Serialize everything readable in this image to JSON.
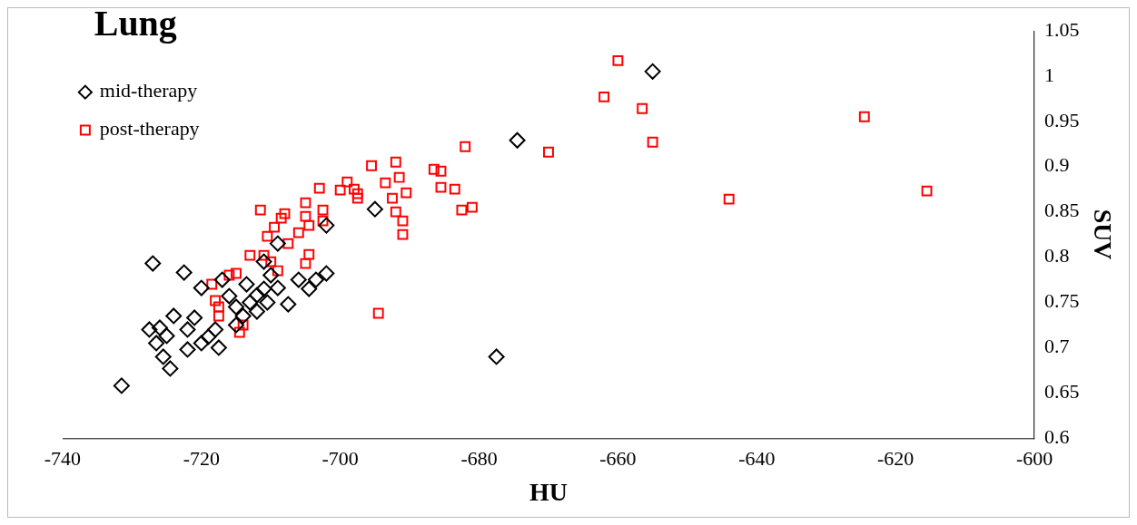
{
  "chart_data": {
    "type": "scatter",
    "title": "Lung",
    "xlabel": "HU",
    "ylabel": "SUV",
    "xlim": [
      -740,
      -600
    ],
    "xticks": [
      -740,
      -720,
      -700,
      -680,
      -660,
      -640,
      -620,
      -600
    ],
    "ylim": [
      0.6,
      1.05
    ],
    "yticks": [
      0.6,
      0.65,
      0.7,
      0.75,
      0.8,
      0.85,
      0.9,
      0.95,
      1,
      1.05
    ],
    "grid": false,
    "legend": "top left",
    "series": [
      {
        "name": "mid-therapy",
        "color": "#000000",
        "marker": "diamond",
        "x": [
          -731.5,
          -727,
          -727.5,
          -726.5,
          -726,
          -725.5,
          -725,
          -724.5,
          -724,
          -722.5,
          -722,
          -722,
          -721,
          -720,
          -720,
          -719,
          -718,
          -717.5,
          -717,
          -716,
          -715,
          -714,
          -713.5,
          -713,
          -712,
          -711,
          -711,
          -710.5,
          -710,
          -709,
          -709,
          -707.5,
          -706,
          -704.5,
          -703.5,
          -702,
          -702,
          -695,
          -677.5,
          -674.5,
          -655,
          -712,
          -715
        ],
        "values": [
          0.658,
          0.793,
          0.72,
          0.705,
          0.722,
          0.69,
          0.713,
          0.677,
          0.735,
          0.783,
          0.698,
          0.72,
          0.733,
          0.766,
          0.705,
          0.712,
          0.72,
          0.7,
          0.775,
          0.757,
          0.745,
          0.735,
          0.77,
          0.75,
          0.74,
          0.795,
          0.765,
          0.75,
          0.78,
          0.815,
          0.766,
          0.748,
          0.775,
          0.765,
          0.775,
          0.782,
          0.835,
          0.853,
          0.69,
          0.929,
          1.005,
          0.758,
          0.725
        ]
      },
      {
        "name": "post-therapy",
        "color": "#ff0000",
        "marker": "square",
        "x": [
          -718.5,
          -718,
          -717.5,
          -717.5,
          -716,
          -715,
          -714.5,
          -714,
          -713,
          -711.5,
          -711,
          -710.5,
          -710,
          -709.5,
          -709,
          -708.5,
          -708,
          -707.5,
          -706,
          -705,
          -705,
          -705,
          -704.5,
          -704.5,
          -703,
          -702.5,
          -702.5,
          -700,
          -699,
          -698,
          -697.5,
          -697.5,
          -695.5,
          -694.5,
          -693.5,
          -692.5,
          -692,
          -692,
          -691.5,
          -691,
          -691,
          -690.5,
          -686.5,
          -685.5,
          -685.5,
          -683.5,
          -682.5,
          -682,
          -681,
          -670,
          -662,
          -660,
          -656.5,
          -655,
          -644,
          -624.5,
          -615.5
        ],
        "values": [
          0.77,
          0.752,
          0.745,
          0.735,
          0.78,
          0.782,
          0.717,
          0.725,
          0.802,
          0.852,
          0.802,
          0.823,
          0.795,
          0.833,
          0.785,
          0.843,
          0.848,
          0.815,
          0.827,
          0.86,
          0.845,
          0.793,
          0.803,
          0.835,
          0.876,
          0.852,
          0.84,
          0.874,
          0.883,
          0.875,
          0.87,
          0.865,
          0.901,
          0.738,
          0.882,
          0.865,
          0.905,
          0.85,
          0.888,
          0.84,
          0.825,
          0.871,
          0.897,
          0.895,
          0.877,
          0.875,
          0.852,
          0.922,
          0.855,
          0.916,
          0.977,
          1.017,
          0.964,
          0.927,
          0.864,
          0.955,
          0.873
        ]
      }
    ]
  }
}
